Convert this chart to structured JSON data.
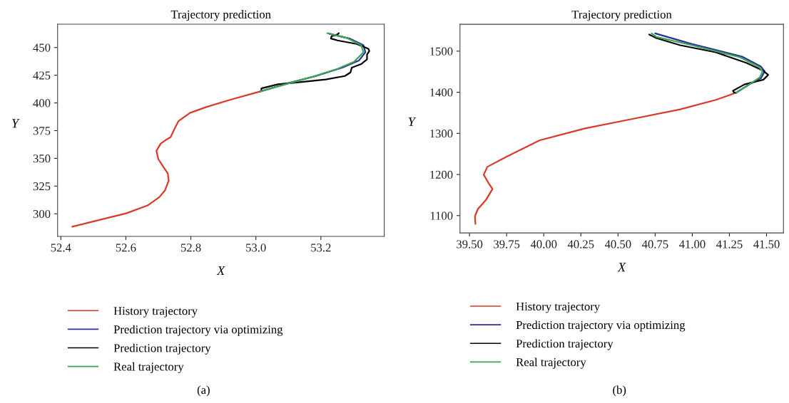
{
  "chart_data": [
    {
      "type": "line",
      "title": "Trajectory prediction",
      "xlabel": "X",
      "ylabel": "Y",
      "xlim": [
        52.39,
        53.395
      ],
      "ylim": [
        279.6,
        471
      ],
      "xticks": [
        52.4,
        52.6,
        52.8,
        {
          "value": 53.0,
          "label": "53.0"
        },
        53.2
      ],
      "yticks": [
        300,
        325,
        350,
        375,
        400,
        425,
        450
      ],
      "legend": "bottom",
      "annotations": [
        "(a)"
      ],
      "series": [
        {
          "name": "History trajectory",
          "color": "#d93a26",
          "x": [
            52.435,
            52.521,
            52.601,
            52.667,
            52.703,
            52.721,
            52.732,
            52.729,
            52.714,
            52.7,
            52.694,
            52.707,
            52.725,
            52.738,
            52.747,
            52.762,
            52.798,
            52.849,
            52.922,
            53.014
          ],
          "values": [
            288.4,
            294.6,
            300.4,
            307.5,
            315,
            321.4,
            330,
            336.4,
            342.9,
            349.3,
            356.8,
            363.2,
            367,
            369.2,
            375,
            383.6,
            391.1,
            396.4,
            402.9,
            410.4
          ]
        },
        {
          "name": "Prediction trajectory via optimizing",
          "color": "#2b2d9e",
          "x": [
            53.014,
            53.105,
            53.185,
            53.266,
            53.317,
            53.337,
            53.331,
            53.288,
            53.226
          ],
          "values": [
            410.4,
            418.3,
            424.3,
            431.8,
            438.2,
            445.7,
            452.1,
            458.1,
            462.4
          ]
        },
        {
          "name": "Prediction trajectory",
          "color": "#000000",
          "x": [
            53.017,
            53.017,
            53.068,
            53.141,
            53.215,
            53.274,
            53.291,
            53.295,
            53.324,
            53.342,
            53.342,
            53.349,
            53.346,
            53.31,
            53.251,
            53.231,
            53.233,
            53.251,
            53.255
          ],
          "values": [
            411,
            413.1,
            416.8,
            418.9,
            421.1,
            424.3,
            427.5,
            431.8,
            435,
            439.3,
            443.6,
            446.8,
            448.9,
            453.2,
            456.4,
            458.1,
            460.2,
            461.8,
            462.9
          ]
        },
        {
          "name": "Real trajectory",
          "color": "#3aa655",
          "x": [
            53.014,
            53.105,
            53.178,
            53.251,
            53.302,
            53.331,
            53.324,
            53.28,
            53.22
          ],
          "values": [
            410.4,
            417.9,
            423.9,
            430.7,
            437.1,
            445.7,
            452.1,
            458.6,
            462.9
          ]
        }
      ]
    },
    {
      "type": "line",
      "title": "Trajectory prediction",
      "xlabel": "X",
      "ylabel": "Y",
      "xlim": [
        39.436,
        41.614
      ],
      "ylim": [
        1057.8,
        1565.3
      ],
      "xticks": [
        {
          "value": 39.5,
          "label": "39.50"
        },
        39.75,
        {
          "value": 40.0,
          "label": "40.00"
        },
        40.25,
        {
          "value": 40.5,
          "label": "40.50"
        },
        40.75,
        {
          "value": 41.0,
          "label": "41.00"
        },
        41.25,
        {
          "value": 41.5,
          "label": "41.50"
        }
      ],
      "yticks": [
        1100,
        1200,
        1300,
        1400,
        1500
      ],
      "legend": "bottom",
      "annotations": [
        "(b)"
      ],
      "series": [
        {
          "name": "History trajectory",
          "color": "#d93a26",
          "x": [
            39.54,
            39.537,
            39.556,
            39.612,
            39.655,
            39.628,
            39.596,
            39.62,
            39.748,
            39.973,
            40.277,
            40.598,
            40.918,
            41.159,
            41.295
          ],
          "values": [
            1079.8,
            1098.3,
            1115.6,
            1138.7,
            1164.7,
            1179.2,
            1199.4,
            1218.5,
            1242.8,
            1283.2,
            1312.1,
            1335.2,
            1358.4,
            1381.5,
            1398.8
          ]
        },
        {
          "name": "Prediction trajectory via optimizing",
          "color": "#2b2d9e",
          "x": [
            41.295,
            41.383,
            41.463,
            41.487,
            41.463,
            41.335,
            40.998,
            40.75
          ],
          "values": [
            1398.8,
            1419,
            1434.7,
            1450.8,
            1462.4,
            1486.7,
            1517.3,
            1543.3
          ]
        },
        {
          "name": "Prediction trajectory",
          "color": "#000000",
          "x": [
            41.295,
            41.279,
            41.274,
            41.351,
            41.479,
            41.511,
            41.479,
            41.367,
            41.159,
            40.918,
            40.758,
            40.71
          ],
          "values": [
            1398.8,
            1400,
            1403.5,
            1419,
            1430.6,
            1442.2,
            1452,
            1471.1,
            1497.1,
            1514.4,
            1531.8,
            1540.4
          ]
        },
        {
          "name": "Real trajectory",
          "color": "#3aa655",
          "x": [
            41.295,
            41.383,
            41.455,
            41.474,
            41.447,
            41.319,
            40.998,
            40.758,
            40.726
          ],
          "values": [
            1398.8,
            1419,
            1436.4,
            1450.8,
            1462.4,
            1485.5,
            1514.4,
            1534.7,
            1543.3
          ]
        }
      ]
    }
  ]
}
